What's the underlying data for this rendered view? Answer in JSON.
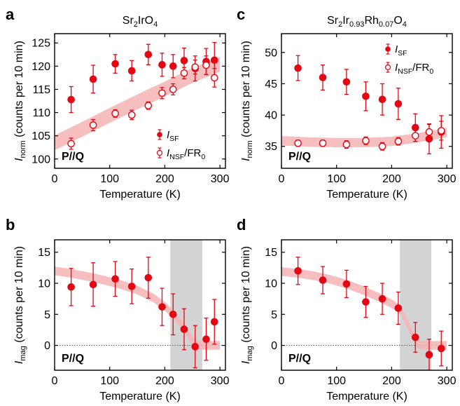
{
  "colors": {
    "marker": "#e30613",
    "band": "#f4b3b3",
    "gray": "#d3d3d3",
    "axis": "#000000"
  },
  "chart_data": [
    {
      "panel": "a",
      "type": "scatter",
      "title": "Sr2IrO4",
      "title_main": "Sr",
      "title_sub1": "2",
      "title_mid": "IrO",
      "title_sub2": "4",
      "xlabel": "Temperature (K)",
      "ylabel_main": "I",
      "ylabel_sub": "norm",
      "ylabel_rest": " (counts per 10 min)",
      "xlim": [
        0,
        310
      ],
      "ylim": [
        98,
        127
      ],
      "xticks": [
        0,
        100,
        200,
        300
      ],
      "yticks": [
        100,
        105,
        110,
        115,
        120,
        125
      ],
      "annotation": "P//Q",
      "legend_position": "bottom-right",
      "legend": [
        {
          "main": "I",
          "sub": "SF",
          "rest": "",
          "marker": "filled"
        },
        {
          "main": "I",
          "sub": "NSF",
          "rest": "/FR",
          "sub2": "0",
          "marker": "open"
        }
      ],
      "series": [
        {
          "name": "I_SF",
          "marker": "filled",
          "points": [
            [
              30,
              112.8,
              2.8
            ],
            [
              70,
              117.2,
              3.0
            ],
            [
              110,
              120.5,
              2.0
            ],
            [
              140,
              119.0,
              2.2
            ],
            [
              170,
              122.5,
              2.2
            ],
            [
              195,
              120.3,
              2.5
            ],
            [
              215,
              120.0,
              2.5
            ],
            [
              235,
              121.2,
              2.7
            ],
            [
              255,
              119.5,
              2.7
            ],
            [
              275,
              121.0,
              2.8
            ],
            [
              290,
              121.3,
              3.8
            ]
          ]
        },
        {
          "name": "I_NSF/FR0",
          "marker": "open",
          "points": [
            [
              30,
              103.3,
              1.2
            ],
            [
              70,
              107.3,
              1.2
            ],
            [
              110,
              109.8,
              0.8
            ],
            [
              140,
              109.5,
              1.0
            ],
            [
              170,
              111.5,
              0.8
            ],
            [
              195,
              114.2,
              1.2
            ],
            [
              215,
              115.0,
              1.2
            ],
            [
              235,
              118.5,
              1.2
            ],
            [
              255,
              119.8,
              1.5
            ],
            [
              275,
              120.2,
              2.0
            ],
            [
              290,
              117.5,
              2.0
            ]
          ]
        }
      ],
      "band": {
        "x": [
          0,
          50,
          100,
          150,
          200,
          250,
          300
        ],
        "y": [
          103.5,
          106.4,
          109.4,
          112.3,
          115.1,
          118.0,
          120.4
        ],
        "halfwidth": 1.6
      }
    },
    {
      "panel": "c",
      "type": "scatter",
      "title": "Sr2Ir0.93Rh0.07O4",
      "title_main": "Sr",
      "title_sub1": "2",
      "title_mid": "Ir",
      "title_sub2": "0.93",
      "title_mid2": "Rh",
      "title_sub3": "0.07",
      "title_mid3": "O",
      "title_sub4": "4",
      "xlabel": "Temperature (K)",
      "ylabel_main": "I",
      "ylabel_sub": "norm",
      "ylabel_rest": " (counts per 10 min)",
      "xlim": [
        0,
        310
      ],
      "ylim": [
        31.5,
        53
      ],
      "xticks": [
        0,
        100,
        200,
        300
      ],
      "yticks": [
        35,
        40,
        45,
        50
      ],
      "annotation": "P//Q",
      "legend_position": "top-right",
      "legend": [
        {
          "main": "I",
          "sub": "SF",
          "rest": "",
          "marker": "filled"
        },
        {
          "main": "I",
          "sub": "NSF",
          "rest": "/FR",
          "sub2": "0",
          "marker": "open"
        }
      ],
      "series": [
        {
          "name": "I_SF",
          "marker": "filled",
          "points": [
            [
              30,
              47.5,
              2.0
            ],
            [
              75,
              46.0,
              2.0
            ],
            [
              118,
              45.3,
              2.0
            ],
            [
              153,
              43.0,
              2.3
            ],
            [
              183,
              42.5,
              2.5
            ],
            [
              212,
              41.8,
              2.5
            ],
            [
              243,
              38.0,
              2.2
            ],
            [
              268,
              36.2,
              2.4
            ],
            [
              290,
              37.3,
              2.6
            ]
          ]
        },
        {
          "name": "I_NSF/FR0",
          "marker": "open",
          "points": [
            [
              30,
              35.5,
              0.5
            ],
            [
              75,
              35.5,
              0.5
            ],
            [
              118,
              35.3,
              0.6
            ],
            [
              153,
              35.9,
              0.6
            ],
            [
              183,
              35.0,
              0.6
            ],
            [
              212,
              35.8,
              0.6
            ],
            [
              243,
              36.7,
              0.9
            ],
            [
              268,
              37.3,
              1.2
            ],
            [
              290,
              37.5,
              1.5
            ]
          ]
        }
      ],
      "band": {
        "x": [
          0,
          50,
          100,
          150,
          200,
          250,
          300
        ],
        "y": [
          35.9,
          35.7,
          35.6,
          35.6,
          35.8,
          36.4,
          37.2
        ],
        "halfwidth": 0.75
      }
    },
    {
      "panel": "b",
      "type": "scatter",
      "title": "",
      "xlabel": "Temperature (K)",
      "ylabel_main": "I",
      "ylabel_sub": "mag",
      "ylabel_rest": " (counts per 10 min)",
      "xlim": [
        0,
        310
      ],
      "ylim": [
        -4,
        17
      ],
      "xticks": [
        0,
        100,
        200,
        300
      ],
      "yticks": [
        0,
        5,
        10,
        15
      ],
      "annotation": "P//Q",
      "shaded_range": [
        210,
        268
      ],
      "zero_line": true,
      "series": [
        {
          "name": "I_mag",
          "marker": "filled",
          "points": [
            [
              30,
              9.4,
              3.0
            ],
            [
              70,
              9.8,
              3.5
            ],
            [
              110,
              10.7,
              2.8
            ],
            [
              140,
              9.5,
              2.8
            ],
            [
              170,
              10.9,
              3.3
            ],
            [
              195,
              6.2,
              3.0
            ],
            [
              215,
              5.0,
              3.3
            ],
            [
              235,
              2.6,
              3.3
            ],
            [
              255,
              -0.2,
              3.4
            ],
            [
              275,
              1.0,
              3.4
            ],
            [
              290,
              3.8,
              3.6
            ]
          ]
        }
      ],
      "band": {
        "x": [
          0,
          30,
          60,
          90,
          120,
          150,
          180,
          200,
          220,
          235,
          245,
          252,
          258,
          265,
          280,
          300
        ],
        "y": [
          12.0,
          11.6,
          11.1,
          10.5,
          9.8,
          8.9,
          7.6,
          6.3,
          4.5,
          2.8,
          1.4,
          0.5,
          0.0,
          0.0,
          0.0,
          0.0
        ],
        "halfwidth": 0.7
      }
    },
    {
      "panel": "d",
      "type": "scatter",
      "title": "",
      "xlabel": "Temperature (K)",
      "ylabel_main": "I",
      "ylabel_sub": "mag",
      "ylabel_rest": " (counts per 10 min)",
      "xlim": [
        0,
        310
      ],
      "ylim": [
        -4,
        17
      ],
      "xticks": [
        0,
        100,
        200,
        300
      ],
      "yticks": [
        0,
        5,
        10,
        15
      ],
      "annotation": "P//Q",
      "shaded_range": [
        215,
        272
      ],
      "zero_line": true,
      "series": [
        {
          "name": "I_mag",
          "marker": "filled",
          "points": [
            [
              30,
              12.0,
              2.2
            ],
            [
              75,
              10.5,
              2.2
            ],
            [
              118,
              9.9,
              2.2
            ],
            [
              153,
              7.0,
              2.5
            ],
            [
              183,
              7.5,
              2.5
            ],
            [
              212,
              6.0,
              2.6
            ],
            [
              243,
              1.3,
              2.4
            ],
            [
              268,
              -1.5,
              2.5
            ],
            [
              290,
              -0.5,
              2.8
            ]
          ]
        }
      ],
      "band": {
        "x": [
          0,
          30,
          60,
          90,
          120,
          150,
          180,
          200,
          215,
          228,
          238,
          246,
          252,
          260,
          280,
          300
        ],
        "y": [
          11.9,
          11.6,
          11.2,
          10.6,
          9.8,
          8.8,
          7.6,
          6.7,
          5.8,
          3.6,
          1.6,
          0.4,
          0.0,
          0.0,
          0.0,
          0.0
        ],
        "halfwidth": 0.7
      }
    }
  ]
}
